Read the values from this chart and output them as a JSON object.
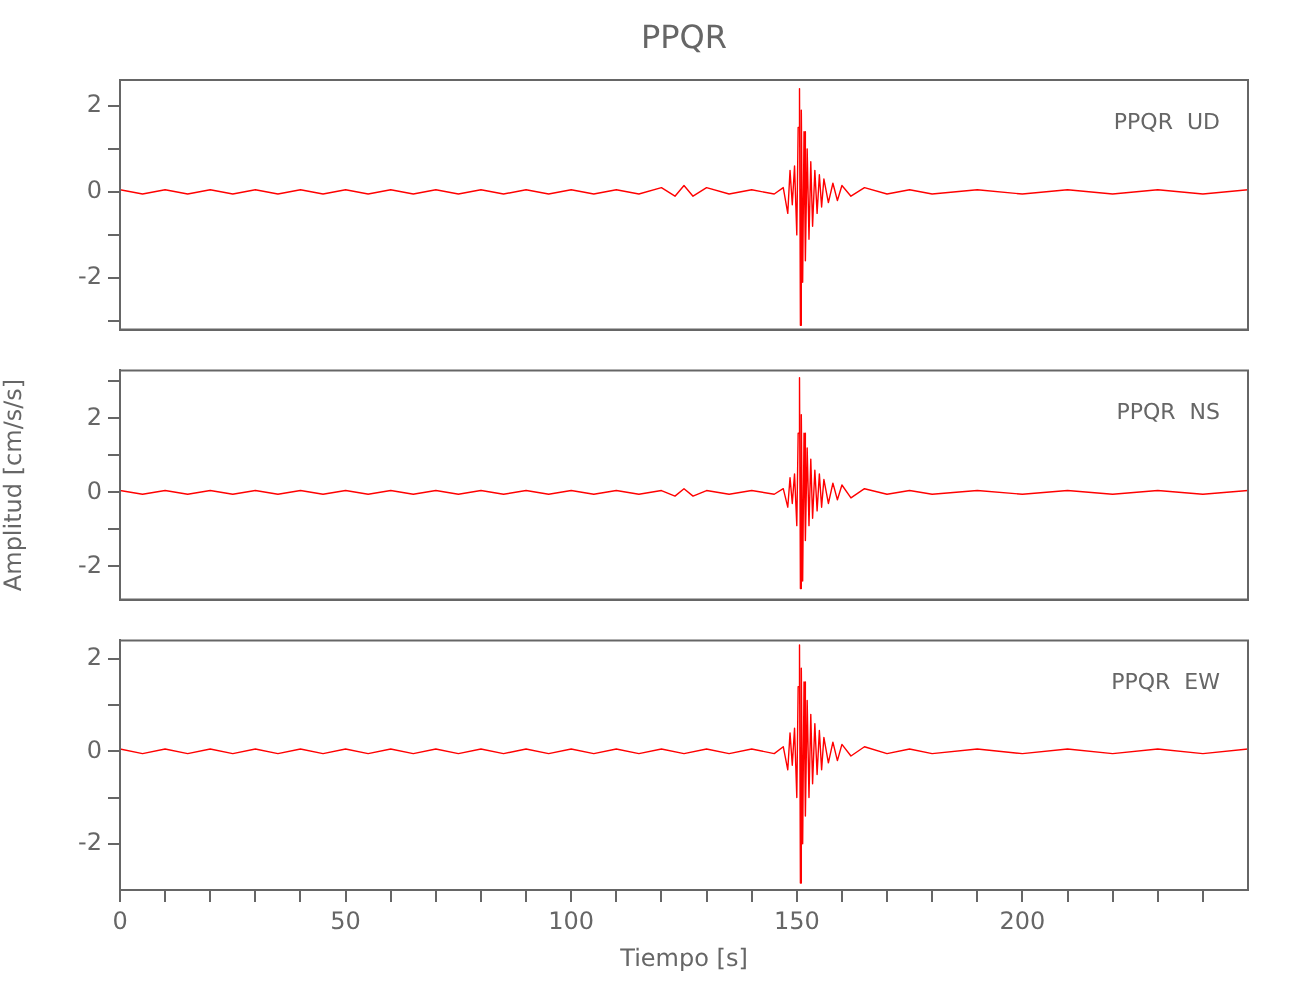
{
  "chart_data": [
    {
      "type": "line",
      "title": "PPQR",
      "annotations": [
        "PPQR  UD"
      ],
      "color": "#ff0000",
      "xlim": [
        0,
        250
      ],
      "ylim": [
        -3.2,
        2.6
      ],
      "yticks": [
        {
          "value": -3,
          "label": null
        },
        -2,
        {
          "value": -1,
          "label": null
        },
        0,
        {
          "value": 1,
          "label": null
        },
        2
      ],
      "tick_labels": "y",
      "grid": false,
      "legend": false,
      "marker": "none",
      "x": [
        0,
        5,
        10,
        15,
        20,
        25,
        30,
        35,
        40,
        45,
        50,
        55,
        60,
        65,
        70,
        75,
        80,
        85,
        90,
        95,
        100,
        105,
        110,
        115,
        120,
        123,
        125,
        127,
        130,
        135,
        140,
        145,
        147,
        148,
        148.5,
        149,
        149.5,
        150,
        150.3,
        150.6,
        150.8,
        151,
        151.3,
        151.6,
        151.9,
        152.3,
        152.7,
        153.1,
        153.5,
        154,
        154.5,
        155,
        155.5,
        156,
        157,
        158,
        159,
        160,
        162,
        165,
        170,
        175,
        180,
        190,
        200,
        210,
        220,
        230,
        240,
        250
      ],
      "values": [
        0.05,
        -0.05,
        0.05,
        -0.05,
        0.05,
        -0.05,
        0.05,
        -0.05,
        0.05,
        -0.05,
        0.05,
        -0.05,
        0.05,
        -0.05,
        0.05,
        -0.05,
        0.05,
        -0.05,
        0.05,
        -0.05,
        0.05,
        -0.05,
        0.05,
        -0.05,
        0.1,
        -0.1,
        0.15,
        -0.1,
        0.1,
        -0.05,
        0.05,
        -0.05,
        0.1,
        -0.5,
        0.5,
        -0.3,
        0.6,
        -1.0,
        1.5,
        2.4,
        -3.1,
        1.9,
        -2.1,
        1.4,
        -1.6,
        1.0,
        -1.1,
        0.7,
        -0.8,
        0.5,
        -0.5,
        0.4,
        -0.35,
        0.3,
        -0.25,
        0.2,
        -0.2,
        0.15,
        -0.1,
        0.1,
        -0.05,
        0.05,
        -0.05,
        0.05,
        -0.05,
        0.05,
        -0.05,
        0.05,
        -0.05,
        0.05
      ]
    },
    {
      "type": "line",
      "ylabel": "Amplitud [cm/s/s]",
      "annotations": [
        "PPQR  NS"
      ],
      "color": "#ff0000",
      "xlim": [
        0,
        250
      ],
      "ylim": [
        -2.9,
        3.3
      ],
      "yticks": [
        -2,
        {
          "value": -1,
          "label": null
        },
        0,
        {
          "value": 1,
          "label": null
        },
        2,
        {
          "value": 3,
          "label": null
        }
      ],
      "tick_labels": "y",
      "grid": false,
      "legend": false,
      "marker": "none",
      "x": [
        0,
        5,
        10,
        15,
        20,
        25,
        30,
        35,
        40,
        45,
        50,
        55,
        60,
        65,
        70,
        75,
        80,
        85,
        90,
        95,
        100,
        105,
        110,
        115,
        120,
        123,
        125,
        127,
        130,
        135,
        140,
        145,
        147,
        148,
        148.5,
        149,
        149.5,
        150,
        150.3,
        150.6,
        150.8,
        151,
        151.3,
        151.6,
        151.9,
        152.3,
        152.7,
        153.1,
        153.5,
        154,
        154.5,
        155,
        155.5,
        156,
        157,
        158,
        159,
        160,
        162,
        165,
        170,
        175,
        180,
        190,
        200,
        210,
        220,
        230,
        240,
        250
      ],
      "values": [
        0.05,
        -0.05,
        0.05,
        -0.05,
        0.05,
        -0.05,
        0.05,
        -0.05,
        0.05,
        -0.05,
        0.05,
        -0.05,
        0.05,
        -0.05,
        0.05,
        -0.05,
        0.05,
        -0.05,
        0.05,
        -0.05,
        0.05,
        -0.05,
        0.05,
        -0.05,
        0.05,
        -0.1,
        0.1,
        -0.1,
        0.05,
        -0.05,
        0.05,
        -0.05,
        0.1,
        -0.4,
        0.4,
        -0.3,
        0.5,
        -0.9,
        1.6,
        3.1,
        -2.6,
        2.1,
        -2.4,
        1.6,
        -1.3,
        1.2,
        -0.9,
        0.9,
        -0.7,
        0.6,
        -0.5,
        0.5,
        -0.4,
        0.35,
        -0.3,
        0.25,
        -0.2,
        0.2,
        -0.15,
        0.1,
        -0.05,
        0.05,
        -0.05,
        0.05,
        -0.05,
        0.05,
        -0.05,
        0.05,
        -0.05,
        0.05
      ]
    },
    {
      "type": "line",
      "xlabel": "Tiempo [s]",
      "annotations": [
        "PPQR  EW"
      ],
      "color": "#ff0000",
      "xlim": [
        0,
        250
      ],
      "ylim": [
        -3.0,
        2.4
      ],
      "xticks": [
        0,
        {
          "value": 10,
          "label": null
        },
        {
          "value": 20,
          "label": null
        },
        {
          "value": 30,
          "label": null
        },
        {
          "value": 40,
          "label": null
        },
        50,
        {
          "value": 60,
          "label": null
        },
        {
          "value": 70,
          "label": null
        },
        {
          "value": 80,
          "label": null
        },
        {
          "value": 90,
          "label": null
        },
        100,
        {
          "value": 110,
          "label": null
        },
        {
          "value": 120,
          "label": null
        },
        {
          "value": 130,
          "label": null
        },
        {
          "value": 140,
          "label": null
        },
        150,
        {
          "value": 160,
          "label": null
        },
        {
          "value": 170,
          "label": null
        },
        {
          "value": 180,
          "label": null
        },
        {
          "value": 190,
          "label": null
        },
        200,
        {
          "value": 210,
          "label": null
        },
        {
          "value": 220,
          "label": null
        },
        {
          "value": 230,
          "label": null
        },
        {
          "value": 240,
          "label": null
        }
      ],
      "yticks": [
        -2,
        {
          "value": -1,
          "label": null
        },
        0,
        {
          "value": 1,
          "label": null
        },
        2
      ],
      "grid": false,
      "legend": false,
      "marker": "none",
      "x": [
        0,
        5,
        10,
        15,
        20,
        25,
        30,
        35,
        40,
        45,
        50,
        55,
        60,
        65,
        70,
        75,
        80,
        85,
        90,
        95,
        100,
        105,
        110,
        115,
        120,
        125,
        130,
        135,
        140,
        145,
        147,
        148,
        148.5,
        149,
        149.5,
        150,
        150.3,
        150.6,
        150.8,
        151,
        151.3,
        151.6,
        151.9,
        152.3,
        152.7,
        153.1,
        153.5,
        154,
        154.5,
        155,
        155.5,
        156,
        157,
        158,
        159,
        160,
        162,
        165,
        170,
        175,
        180,
        190,
        200,
        210,
        220,
        230,
        240,
        250
      ],
      "values": [
        0.05,
        -0.05,
        0.05,
        -0.05,
        0.05,
        -0.05,
        0.05,
        -0.05,
        0.05,
        -0.05,
        0.05,
        -0.05,
        0.05,
        -0.05,
        0.05,
        -0.05,
        0.05,
        -0.05,
        0.05,
        -0.05,
        0.05,
        -0.05,
        0.05,
        -0.05,
        0.05,
        -0.05,
        0.05,
        -0.05,
        0.05,
        -0.05,
        0.1,
        -0.4,
        0.4,
        -0.3,
        0.5,
        -1.0,
        1.4,
        2.3,
        -2.85,
        1.8,
        -2.0,
        1.5,
        -1.4,
        1.1,
        -1.0,
        0.8,
        -0.7,
        0.6,
        -0.5,
        0.45,
        -0.4,
        0.3,
        -0.25,
        0.2,
        -0.2,
        0.15,
        -0.1,
        0.1,
        -0.05,
        0.05,
        -0.05,
        0.05,
        -0.05,
        0.05,
        -0.05,
        0.05,
        -0.05,
        0.05
      ]
    }
  ]
}
